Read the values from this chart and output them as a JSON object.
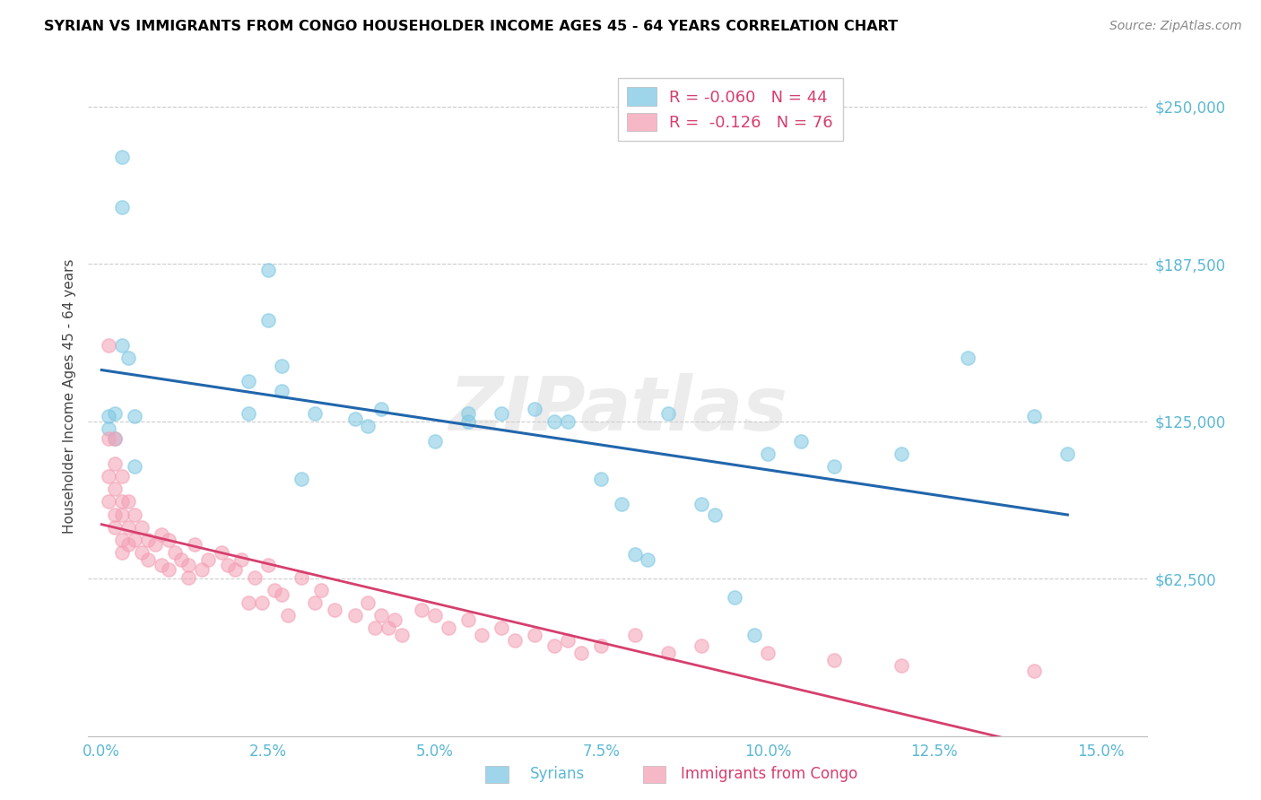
{
  "title": "SYRIAN VS IMMIGRANTS FROM CONGO HOUSEHOLDER INCOME AGES 45 - 64 YEARS CORRELATION CHART",
  "source": "Source: ZipAtlas.com",
  "ylabel": "Householder Income Ages 45 - 64 years",
  "ytick_values": [
    250000,
    187500,
    125000,
    62500
  ],
  "ymin": 0,
  "ymax": 270000,
  "xmin": -0.002,
  "xmax": 0.157,
  "syrian_R": "-0.060",
  "syrian_N": "44",
  "congo_R": "-0.126",
  "congo_N": "76",
  "syrian_color": "#7ec8e3",
  "congo_color": "#f4a0b5",
  "syrian_line_color": "#2166ac",
  "congo_line_color": "#d63f6e",
  "watermark": "ZIPatlas",
  "syrian_x": [
    0.001,
    0.001,
    0.002,
    0.002,
    0.022,
    0.022,
    0.025,
    0.025,
    0.027,
    0.027,
    0.03,
    0.032,
    0.038,
    0.04,
    0.042,
    0.05,
    0.055,
    0.055,
    0.06,
    0.065,
    0.068,
    0.07,
    0.075,
    0.078,
    0.08,
    0.082,
    0.085,
    0.09,
    0.092,
    0.095,
    0.098,
    0.1,
    0.105,
    0.11,
    0.12,
    0.13,
    0.14,
    0.145,
    0.003,
    0.003,
    0.003,
    0.004,
    0.005,
    0.005
  ],
  "syrian_y": [
    127000,
    122000,
    128000,
    118000,
    141000,
    128000,
    185000,
    165000,
    147000,
    137000,
    102000,
    128000,
    126000,
    123000,
    130000,
    117000,
    128000,
    125000,
    128000,
    130000,
    125000,
    125000,
    102000,
    92000,
    72000,
    70000,
    128000,
    92000,
    88000,
    55000,
    40000,
    112000,
    117000,
    107000,
    112000,
    150000,
    127000,
    112000,
    230000,
    210000,
    155000,
    150000,
    127000,
    107000
  ],
  "congo_x": [
    0.001,
    0.001,
    0.001,
    0.001,
    0.002,
    0.002,
    0.002,
    0.002,
    0.002,
    0.003,
    0.003,
    0.003,
    0.003,
    0.003,
    0.004,
    0.004,
    0.004,
    0.005,
    0.005,
    0.006,
    0.006,
    0.007,
    0.007,
    0.008,
    0.009,
    0.009,
    0.01,
    0.01,
    0.011,
    0.012,
    0.013,
    0.013,
    0.014,
    0.015,
    0.016,
    0.018,
    0.019,
    0.02,
    0.021,
    0.022,
    0.023,
    0.024,
    0.025,
    0.026,
    0.027,
    0.028,
    0.03,
    0.032,
    0.033,
    0.035,
    0.038,
    0.04,
    0.041,
    0.042,
    0.043,
    0.044,
    0.045,
    0.048,
    0.05,
    0.052,
    0.055,
    0.057,
    0.06,
    0.062,
    0.065,
    0.068,
    0.07,
    0.072,
    0.075,
    0.08,
    0.085,
    0.09,
    0.1,
    0.11,
    0.12,
    0.14
  ],
  "congo_y": [
    155000,
    118000,
    103000,
    93000,
    118000,
    108000,
    98000,
    88000,
    83000,
    103000,
    93000,
    88000,
    78000,
    73000,
    93000,
    83000,
    76000,
    88000,
    78000,
    83000,
    73000,
    78000,
    70000,
    76000,
    80000,
    68000,
    78000,
    66000,
    73000,
    70000,
    68000,
    63000,
    76000,
    66000,
    70000,
    73000,
    68000,
    66000,
    70000,
    53000,
    63000,
    53000,
    68000,
    58000,
    56000,
    48000,
    63000,
    53000,
    58000,
    50000,
    48000,
    53000,
    43000,
    48000,
    43000,
    46000,
    40000,
    50000,
    48000,
    43000,
    46000,
    40000,
    43000,
    38000,
    40000,
    36000,
    38000,
    33000,
    36000,
    40000,
    33000,
    36000,
    33000,
    30000,
    28000,
    26000
  ]
}
